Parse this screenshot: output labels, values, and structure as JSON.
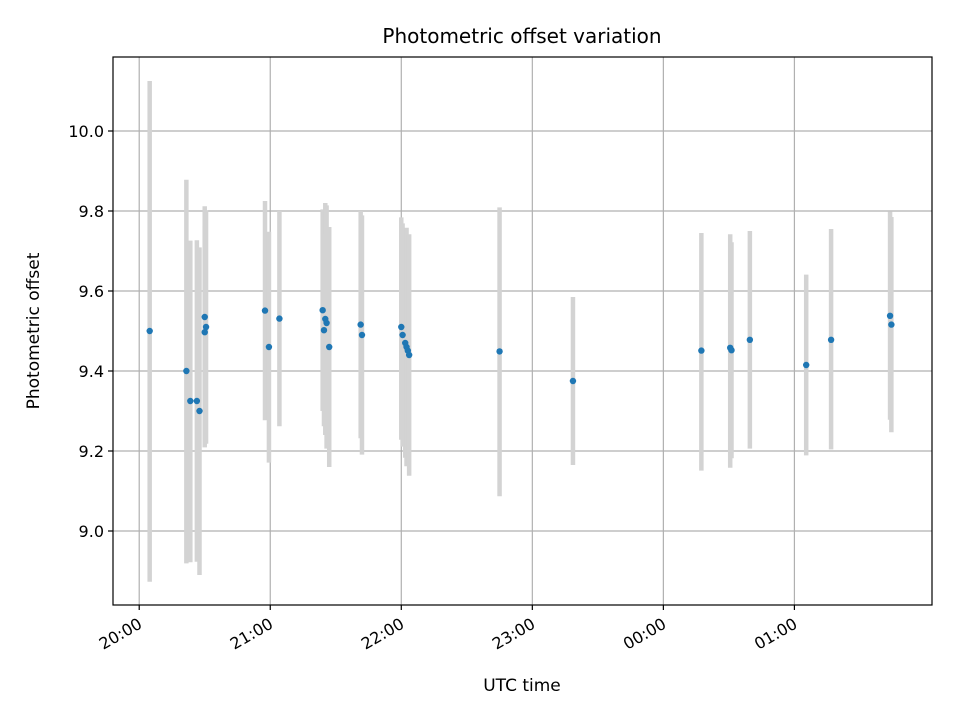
{
  "chart_data": {
    "type": "scatter",
    "title": "Photometric offset variation",
    "xlabel": "UTC time",
    "ylabel": "Photometric offset",
    "x_unit": "UTC time (hours since 20:00)",
    "xlim": [
      -0.2,
      6.05
    ],
    "ylim": [
      8.815,
      10.185
    ],
    "x_ticks": [
      {
        "value": 0,
        "label": "20:00"
      },
      {
        "value": 1,
        "label": "21:00"
      },
      {
        "value": 2,
        "label": "22:00"
      },
      {
        "value": 3,
        "label": "23:00"
      },
      {
        "value": 4,
        "label": "00:00"
      },
      {
        "value": 5,
        "label": "01:00"
      }
    ],
    "y_ticks": [
      {
        "value": 9.0,
        "label": "9.0"
      },
      {
        "value": 9.2,
        "label": "9.2"
      },
      {
        "value": 9.4,
        "label": "9.4"
      },
      {
        "value": 9.6,
        "label": "9.6"
      },
      {
        "value": 9.8,
        "label": "9.8"
      },
      {
        "value": 10.0,
        "label": "10.0"
      }
    ],
    "grid": true,
    "colors": {
      "points": "#1f77b4",
      "error_bars": "#d3d3d3",
      "grid": "#b0b0b0"
    },
    "series": [
      {
        "points": [
          {
            "x": 0.08,
            "y": 9.5,
            "err_low": 8.873,
            "err_high": 10.125
          },
          {
            "x": 0.36,
            "y": 9.4,
            "err_low": 8.919,
            "err_high": 9.878
          },
          {
            "x": 0.39,
            "y": 9.325,
            "err_low": 8.922,
            "err_high": 9.726
          },
          {
            "x": 0.44,
            "y": 9.325,
            "err_low": 8.923,
            "err_high": 9.727
          },
          {
            "x": 0.46,
            "y": 9.3,
            "err_low": 8.89,
            "err_high": 9.709
          },
          {
            "x": 0.5,
            "y": 9.535,
            "err_low": 9.209,
            "err_high": 9.812
          },
          {
            "x": 0.51,
            "y": 9.51,
            "err_low": 9.218,
            "err_high": 9.802
          },
          {
            "x": 0.5,
            "y": 9.497,
            "err_low": 9.23,
            "err_high": 9.764
          },
          {
            "x": 0.96,
            "y": 9.551,
            "err_low": 9.277,
            "err_high": 9.825
          },
          {
            "x": 0.99,
            "y": 9.46,
            "err_low": 9.171,
            "err_high": 9.748
          },
          {
            "x": 1.07,
            "y": 9.531,
            "err_low": 9.262,
            "err_high": 9.8
          },
          {
            "x": 1.4,
            "y": 9.552,
            "err_low": 9.3,
            "err_high": 9.804
          },
          {
            "x": 1.42,
            "y": 9.53,
            "err_low": 9.24,
            "err_high": 9.82
          },
          {
            "x": 1.43,
            "y": 9.52,
            "err_low": 9.206,
            "err_high": 9.814
          },
          {
            "x": 1.41,
            "y": 9.502,
            "err_low": 9.262,
            "err_high": 9.742
          },
          {
            "x": 1.45,
            "y": 9.46,
            "err_low": 9.16,
            "err_high": 9.76
          },
          {
            "x": 1.69,
            "y": 9.516,
            "err_low": 9.232,
            "err_high": 9.8
          },
          {
            "x": 1.7,
            "y": 9.49,
            "err_low": 9.191,
            "err_high": 9.789
          },
          {
            "x": 2.0,
            "y": 9.51,
            "err_low": 9.228,
            "err_high": 9.784
          },
          {
            "x": 2.01,
            "y": 9.49,
            "err_low": 9.211,
            "err_high": 9.769
          },
          {
            "x": 2.03,
            "y": 9.47,
            "err_low": 9.183,
            "err_high": 9.757
          },
          {
            "x": 2.04,
            "y": 9.46,
            "err_low": 9.162,
            "err_high": 9.758
          },
          {
            "x": 2.05,
            "y": 9.451,
            "err_low": 9.167,
            "err_high": 9.735
          },
          {
            "x": 2.06,
            "y": 9.44,
            "err_low": 9.138,
            "err_high": 9.742
          },
          {
            "x": 2.75,
            "y": 9.449,
            "err_low": 9.087,
            "err_high": 9.809
          },
          {
            "x": 3.31,
            "y": 9.375,
            "err_low": 9.165,
            "err_high": 9.585
          },
          {
            "x": 4.29,
            "y": 9.451,
            "err_low": 9.151,
            "err_high": 9.745
          },
          {
            "x": 4.51,
            "y": 9.458,
            "err_low": 9.158,
            "err_high": 9.742
          },
          {
            "x": 4.52,
            "y": 9.452,
            "err_low": 9.182,
            "err_high": 9.722
          },
          {
            "x": 4.66,
            "y": 9.478,
            "err_low": 9.206,
            "err_high": 9.75
          },
          {
            "x": 5.09,
            "y": 9.415,
            "err_low": 9.189,
            "err_high": 9.641
          },
          {
            "x": 5.28,
            "y": 9.478,
            "err_low": 9.204,
            "err_high": 9.755
          },
          {
            "x": 5.73,
            "y": 9.538,
            "err_low": 9.278,
            "err_high": 9.798
          },
          {
            "x": 5.74,
            "y": 9.516,
            "err_low": 9.247,
            "err_high": 9.785
          }
        ]
      }
    ]
  }
}
